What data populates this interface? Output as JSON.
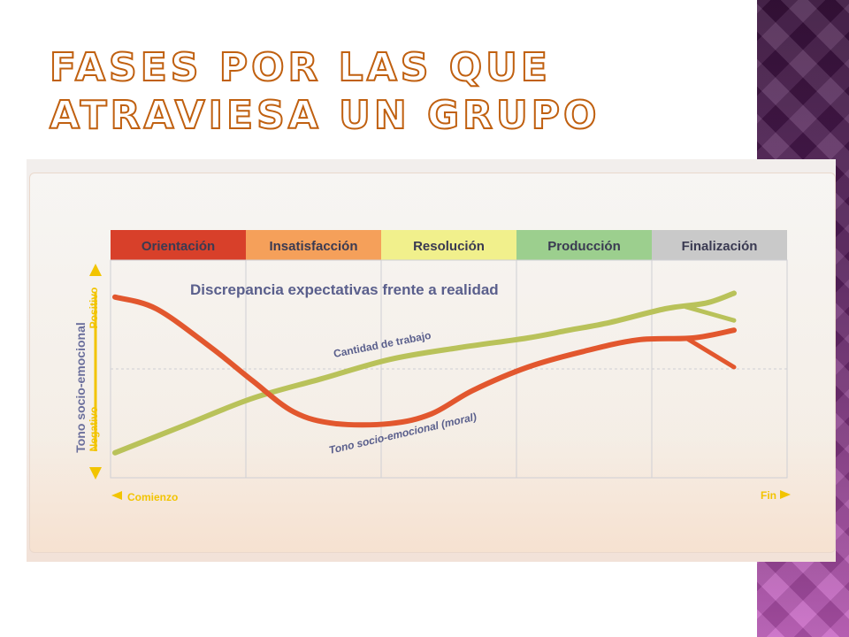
{
  "slide": {
    "title": "Fases por las que atraviesa un grupo"
  },
  "chart_data": {
    "type": "line",
    "phases": [
      "Orientación",
      "Insatisfacción",
      "Resolución",
      "Producción",
      "Finalización"
    ],
    "phase_colors": [
      "#d8402a",
      "#f5a05a",
      "#f1f08c",
      "#9ccf8e",
      "#c9c9c9"
    ],
    "title": "Discrepancia expectativas frente a realidad",
    "ylabel": "Tono socio-emocional",
    "y_positive_label": "Positivo",
    "y_negative_label": "Negativo",
    "x_start_label": "Comienzo",
    "x_end_label": "Fin",
    "xlim": [
      0,
      5
    ],
    "ylim": [
      0,
      10
    ],
    "grid": true,
    "series": [
      {
        "name": "Cantidad de trabajo",
        "color": "#b9c25a",
        "points": [
          [
            0.0,
            0.6
          ],
          [
            0.5,
            2.0
          ],
          [
            1.0,
            3.4
          ],
          [
            1.5,
            4.4
          ],
          [
            2.0,
            5.4
          ],
          [
            2.5,
            6.0
          ],
          [
            3.0,
            6.5
          ],
          [
            3.3,
            6.9
          ],
          [
            3.6,
            7.3
          ],
          [
            4.0,
            8.0
          ],
          [
            4.3,
            8.3
          ],
          [
            4.5,
            8.8
          ]
        ],
        "end_branch": [
          [
            4.15,
            8.1
          ],
          [
            4.5,
            7.4
          ]
        ]
      },
      {
        "name": "Tono socio-emocional (moral)",
        "color": "#e2572e",
        "points": [
          [
            0.0,
            8.6
          ],
          [
            0.3,
            8.0
          ],
          [
            0.7,
            6.0
          ],
          [
            1.0,
            4.3
          ],
          [
            1.3,
            2.7
          ],
          [
            1.6,
            2.1
          ],
          [
            2.0,
            2.1
          ],
          [
            2.3,
            2.6
          ],
          [
            2.6,
            3.8
          ],
          [
            3.0,
            5.0
          ],
          [
            3.4,
            5.8
          ],
          [
            3.8,
            6.4
          ],
          [
            4.2,
            6.5
          ],
          [
            4.5,
            6.9
          ]
        ],
        "end_branch": [
          [
            4.15,
            6.5
          ],
          [
            4.5,
            5.0
          ]
        ]
      }
    ]
  }
}
